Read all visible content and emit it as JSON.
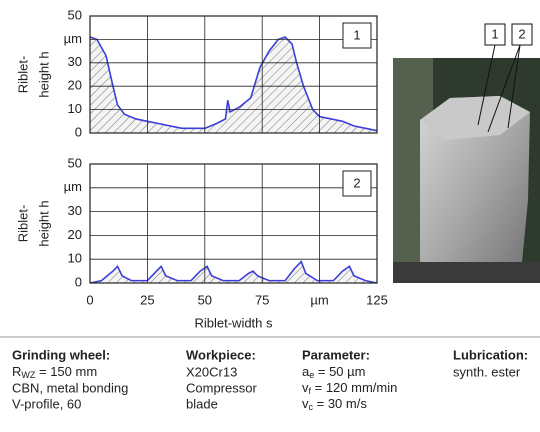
{
  "chart_data": [
    {
      "type": "area",
      "panel": "1",
      "ylabel": [
        "Riblet-",
        "height h"
      ],
      "color": "#3b3fd8",
      "xlim": [
        0,
        125
      ],
      "xticks": [
        0,
        25,
        50,
        75,
        100,
        125
      ],
      "show_xtick_labels": false,
      "ylim": [
        0,
        50
      ],
      "yticks": [
        0,
        10,
        20,
        30,
        {
          "value": 40,
          "label": "µm"
        },
        50
      ],
      "grid": true,
      "x": [
        0,
        3,
        7,
        10,
        12,
        15,
        20,
        25,
        30,
        40,
        50,
        55,
        59,
        60,
        61,
        65,
        70,
        74,
        78,
        82,
        85,
        88,
        90,
        93,
        97,
        100,
        105,
        110,
        115,
        120,
        125
      ],
      "values": [
        41,
        40,
        33,
        20,
        12,
        8,
        6,
        5,
        4,
        2,
        2,
        4,
        6,
        14,
        9,
        11,
        15,
        28,
        35,
        40,
        41,
        38,
        30,
        20,
        10,
        7,
        6,
        5,
        3,
        2,
        1
      ]
    },
    {
      "type": "area",
      "panel": "2",
      "ylabel": [
        "Riblet-",
        "height h"
      ],
      "xlabel": "Riblet-width s",
      "color": "#3b3fd8",
      "xlim": [
        0,
        125
      ],
      "xticks": [
        0,
        25,
        50,
        75,
        {
          "value": 100,
          "label": "µm"
        },
        125
      ],
      "show_xtick_labels": true,
      "ylim": [
        0,
        50
      ],
      "yticks": [
        0,
        10,
        20,
        30,
        {
          "value": 40,
          "label": "µm"
        },
        50
      ],
      "grid": true,
      "x": [
        0,
        5,
        10,
        12,
        14,
        18,
        25,
        29,
        31,
        33,
        38,
        44,
        48,
        51,
        53,
        58,
        65,
        69,
        71,
        73,
        78,
        85,
        89,
        92,
        94,
        99,
        106,
        110,
        113,
        115,
        120,
        125
      ],
      "values": [
        0,
        1,
        5,
        7,
        3,
        1,
        1,
        5,
        7,
        3,
        1,
        1,
        5,
        7,
        3,
        1,
        1,
        4,
        5,
        3,
        1,
        1,
        6,
        9,
        4,
        1,
        1,
        5,
        7,
        3,
        1,
        0
      ]
    }
  ],
  "photo": {
    "labels": [
      "1",
      "2"
    ]
  },
  "info": {
    "columns": [
      {
        "heading": "Grinding wheel:",
        "lines": [
          {
            "symbol": "R",
            "sub": "WZ",
            "rest": " = 150 mm"
          },
          "CBN, metal bonding",
          "V-profile, 60"
        ]
      },
      {
        "heading": "Workpiece:",
        "lines": [
          "X20Cr13",
          "Compressor",
          "blade"
        ]
      },
      {
        "heading": "Parameter:",
        "lines": [
          {
            "symbol": "a",
            "sub": "e",
            "rest": " = 50 µm"
          },
          {
            "symbol": "v",
            "sub": "f",
            "rest": " = 120 mm/min"
          },
          {
            "symbol": "v",
            "sub": "c",
            "rest": " = 30 m/s"
          }
        ]
      },
      {
        "heading": "Lubrication:",
        "lines": [
          "synth. ester"
        ]
      }
    ]
  }
}
